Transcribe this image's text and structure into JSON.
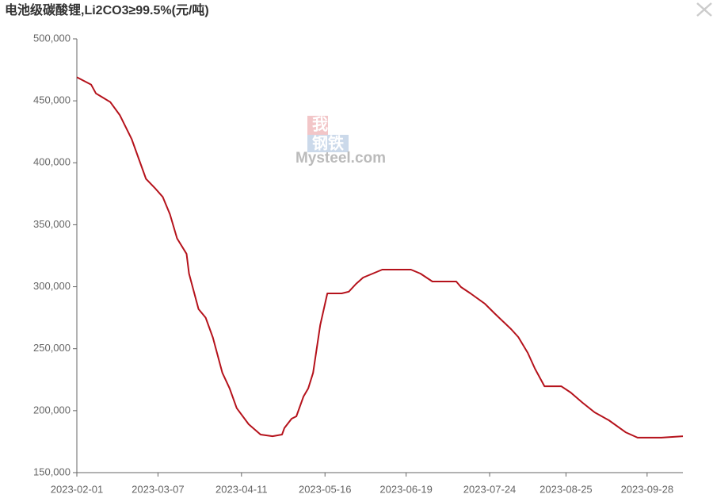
{
  "chart_data": {
    "type": "line",
    "title": "电池级碳酸锂,Li2CO3≥99.5%(元/吨)",
    "watermark": [
      "我的",
      "钢铁",
      "Mysteel.com"
    ],
    "x": [
      "2023-02-01",
      "2023-02-07",
      "2023-02-09",
      "2023-02-15",
      "2023-02-19",
      "2023-02-24",
      "2023-02-27",
      "2023-03-02",
      "2023-03-06",
      "2023-03-09",
      "2023-03-12",
      "2023-03-15",
      "2023-03-19",
      "2023-03-20",
      "2023-03-24",
      "2023-03-27",
      "2023-03-30",
      "2023-04-03",
      "2023-04-06",
      "2023-04-09",
      "2023-04-14",
      "2023-04-19",
      "2023-04-24",
      "2023-04-28",
      "2023-04-29",
      "2023-05-02",
      "2023-05-04",
      "2023-05-07",
      "2023-05-09",
      "2023-05-11",
      "2023-05-14",
      "2023-05-17",
      "2023-05-23",
      "2023-05-26",
      "2023-05-29",
      "2023-06-01",
      "2023-06-05",
      "2023-06-09",
      "2023-06-21",
      "2023-06-25",
      "2023-06-30",
      "2023-07-10",
      "2023-07-12",
      "2023-07-16",
      "2023-07-22",
      "2023-07-26",
      "2023-08-02",
      "2023-08-05",
      "2023-08-09",
      "2023-08-12",
      "2023-08-16",
      "2023-08-23",
      "2023-08-27",
      "2023-09-01",
      "2023-09-06",
      "2023-09-12",
      "2023-09-19",
      "2023-09-24",
      "2023-10-04",
      "2023-10-13"
    ],
    "series": [
      {
        "name": "电池级碳酸锂",
        "color": "#b5121b",
        "values": [
          469000,
          463000,
          456000,
          449000,
          438500,
          419000,
          403000,
          387000,
          379000,
          372500,
          358500,
          339000,
          326500,
          310600,
          282000,
          275000,
          259000,
          230500,
          218000,
          202000,
          189000,
          180700,
          179400,
          180700,
          186000,
          193500,
          195400,
          211400,
          218000,
          230500,
          269000,
          294600,
          294600,
          296000,
          302300,
          307400,
          310600,
          313800,
          313800,
          310600,
          304200,
          304200,
          299700,
          294600,
          286300,
          278600,
          265800,
          259400,
          246600,
          233800,
          219700,
          219700,
          214600,
          206300,
          198600,
          192200,
          182600,
          178200,
          178200,
          179400
        ]
      }
    ],
    "xlim": [
      "2023-02-01",
      "2023-10-13"
    ],
    "xticks": [
      "2023-02-01",
      "2023-03-07",
      "2023-04-11",
      "2023-05-16",
      "2023-06-19",
      "2023-07-24",
      "2023-08-25",
      "2023-09-28"
    ],
    "ylim": [
      150000,
      500000
    ],
    "yticks": [
      {
        "value": 150000,
        "label": "150,000"
      },
      {
        "value": 200000,
        "label": "200,000"
      },
      {
        "value": 250000,
        "label": "250,000"
      },
      {
        "value": 300000,
        "label": "300,000"
      },
      {
        "value": 350000,
        "label": "350,000"
      },
      {
        "value": 400000,
        "label": "400,000"
      },
      {
        "value": 450000,
        "label": "450,000"
      },
      {
        "value": 500000,
        "label": "500,000"
      }
    ],
    "grid": false
  }
}
